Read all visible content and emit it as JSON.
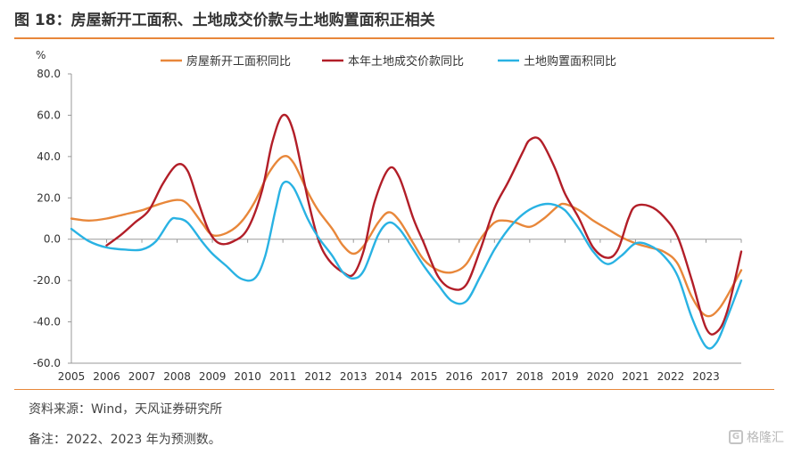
{
  "header": {
    "title": "图 18：房屋新开工面积、土地成交价款与土地购置面积正相关"
  },
  "footer": {
    "source": "资料来源：Wind，天风证券研究所",
    "note": "备注：2022、2023 年为预测数。",
    "watermark": "格隆汇",
    "watermark_glyph": "G"
  },
  "chart_data": {
    "type": "line",
    "ylabel": "%",
    "ylim": [
      -60,
      80
    ],
    "yticks": [
      "80.0",
      "60.0",
      "40.0",
      "20.0",
      "0.0",
      "-20.0",
      "-40.0",
      "-60.0"
    ],
    "ytick_values": [
      80,
      60,
      40,
      20,
      0,
      -20,
      -40,
      -60
    ],
    "xlim": [
      2005,
      2024
    ],
    "xticks": [
      "2005",
      "2006",
      "2007",
      "2008",
      "2009",
      "2010",
      "2011",
      "2012",
      "2013",
      "2014",
      "2015",
      "2016",
      "2017",
      "2018",
      "2019",
      "2020",
      "2021",
      "2022",
      "2023"
    ],
    "xtick_values": [
      2005,
      2006,
      2007,
      2008,
      2009,
      2010,
      2011,
      2012,
      2013,
      2014,
      2015,
      2016,
      2017,
      2018,
      2019,
      2020,
      2021,
      2022,
      2023
    ],
    "legend_position": "top",
    "grid": false,
    "series": [
      {
        "name": "房屋新开工面积同比",
        "color": "#e8873a",
        "points": [
          [
            2005.0,
            10
          ],
          [
            2005.5,
            9
          ],
          [
            2006.0,
            10
          ],
          [
            2006.5,
            12
          ],
          [
            2007.0,
            14
          ],
          [
            2007.5,
            17
          ],
          [
            2008.0,
            19
          ],
          [
            2008.3,
            17
          ],
          [
            2008.7,
            8
          ],
          [
            2009.0,
            2
          ],
          [
            2009.4,
            3
          ],
          [
            2009.8,
            8
          ],
          [
            2010.2,
            18
          ],
          [
            2010.6,
            32
          ],
          [
            2011.0,
            40
          ],
          [
            2011.3,
            37
          ],
          [
            2011.7,
            23
          ],
          [
            2012.0,
            14
          ],
          [
            2012.4,
            5
          ],
          [
            2012.7,
            -3
          ],
          [
            2013.0,
            -7
          ],
          [
            2013.3,
            -3
          ],
          [
            2013.7,
            8
          ],
          [
            2014.0,
            13
          ],
          [
            2014.3,
            9
          ],
          [
            2014.7,
            -2
          ],
          [
            2015.0,
            -10
          ],
          [
            2015.4,
            -15
          ],
          [
            2015.8,
            -16
          ],
          [
            2016.2,
            -12
          ],
          [
            2016.6,
            0
          ],
          [
            2017.0,
            8
          ],
          [
            2017.3,
            9
          ],
          [
            2017.6,
            8
          ],
          [
            2018.0,
            6
          ],
          [
            2018.4,
            10
          ],
          [
            2018.8,
            16
          ],
          [
            2019.0,
            17
          ],
          [
            2019.4,
            14
          ],
          [
            2019.8,
            9
          ],
          [
            2020.2,
            5
          ],
          [
            2020.6,
            1
          ],
          [
            2021.0,
            -2
          ],
          [
            2021.4,
            -4
          ],
          [
            2021.8,
            -6
          ],
          [
            2022.2,
            -12
          ],
          [
            2022.6,
            -28
          ],
          [
            2023.0,
            -37
          ],
          [
            2023.4,
            -33
          ],
          [
            2024.0,
            -15
          ]
        ]
      },
      {
        "name": "本年土地成交价款同比",
        "color": "#b21e28",
        "points": [
          [
            2006.0,
            -3
          ],
          [
            2006.4,
            2
          ],
          [
            2006.8,
            8
          ],
          [
            2007.2,
            14
          ],
          [
            2007.6,
            27
          ],
          [
            2008.0,
            36
          ],
          [
            2008.3,
            33
          ],
          [
            2008.6,
            18
          ],
          [
            2008.9,
            4
          ],
          [
            2009.2,
            -2
          ],
          [
            2009.6,
            -1
          ],
          [
            2010.0,
            5
          ],
          [
            2010.4,
            23
          ],
          [
            2010.7,
            47
          ],
          [
            2011.0,
            60
          ],
          [
            2011.3,
            52
          ],
          [
            2011.7,
            20
          ],
          [
            2012.0,
            0
          ],
          [
            2012.3,
            -10
          ],
          [
            2012.7,
            -16
          ],
          [
            2013.0,
            -17
          ],
          [
            2013.3,
            -5
          ],
          [
            2013.6,
            18
          ],
          [
            2014.0,
            34
          ],
          [
            2014.3,
            30
          ],
          [
            2014.7,
            10
          ],
          [
            2015.0,
            -2
          ],
          [
            2015.4,
            -18
          ],
          [
            2015.8,
            -24
          ],
          [
            2016.2,
            -22
          ],
          [
            2016.6,
            -5
          ],
          [
            2017.0,
            15
          ],
          [
            2017.4,
            28
          ],
          [
            2017.8,
            42
          ],
          [
            2018.0,
            48
          ],
          [
            2018.3,
            48
          ],
          [
            2018.7,
            35
          ],
          [
            2019.0,
            22
          ],
          [
            2019.4,
            10
          ],
          [
            2019.8,
            -4
          ],
          [
            2020.2,
            -9
          ],
          [
            2020.5,
            -5
          ],
          [
            2020.8,
            10
          ],
          [
            2021.0,
            16
          ],
          [
            2021.4,
            16
          ],
          [
            2021.8,
            11
          ],
          [
            2022.2,
            1
          ],
          [
            2022.6,
            -20
          ],
          [
            2023.0,
            -43
          ],
          [
            2023.3,
            -45
          ],
          [
            2023.6,
            -35
          ],
          [
            2024.0,
            -6
          ]
        ]
      },
      {
        "name": "土地购置面积同比",
        "color": "#29b2e3",
        "points": [
          [
            2005.0,
            5
          ],
          [
            2005.5,
            -1
          ],
          [
            2006.0,
            -4
          ],
          [
            2006.5,
            -5
          ],
          [
            2007.0,
            -5
          ],
          [
            2007.4,
            -1
          ],
          [
            2007.8,
            9
          ],
          [
            2008.0,
            10
          ],
          [
            2008.3,
            8
          ],
          [
            2008.7,
            -1
          ],
          [
            2009.0,
            -7
          ],
          [
            2009.4,
            -13
          ],
          [
            2009.8,
            -19
          ],
          [
            2010.2,
            -19
          ],
          [
            2010.5,
            -8
          ],
          [
            2010.8,
            15
          ],
          [
            2011.0,
            27
          ],
          [
            2011.3,
            25
          ],
          [
            2011.7,
            10
          ],
          [
            2012.0,
            1
          ],
          [
            2012.4,
            -8
          ],
          [
            2012.7,
            -16
          ],
          [
            2013.0,
            -19
          ],
          [
            2013.3,
            -15
          ],
          [
            2013.7,
            2
          ],
          [
            2014.0,
            8
          ],
          [
            2014.3,
            5
          ],
          [
            2014.7,
            -5
          ],
          [
            2015.0,
            -13
          ],
          [
            2015.4,
            -22
          ],
          [
            2015.8,
            -30
          ],
          [
            2016.2,
            -30
          ],
          [
            2016.6,
            -18
          ],
          [
            2017.0,
            -5
          ],
          [
            2017.4,
            5
          ],
          [
            2017.8,
            12
          ],
          [
            2018.2,
            16
          ],
          [
            2018.6,
            17
          ],
          [
            2019.0,
            14
          ],
          [
            2019.4,
            5
          ],
          [
            2019.8,
            -6
          ],
          [
            2020.2,
            -12
          ],
          [
            2020.6,
            -8
          ],
          [
            2021.0,
            -2
          ],
          [
            2021.4,
            -3
          ],
          [
            2021.8,
            -8
          ],
          [
            2022.2,
            -18
          ],
          [
            2022.6,
            -38
          ],
          [
            2023.0,
            -52
          ],
          [
            2023.3,
            -50
          ],
          [
            2023.6,
            -38
          ],
          [
            2024.0,
            -20
          ]
        ]
      }
    ]
  }
}
